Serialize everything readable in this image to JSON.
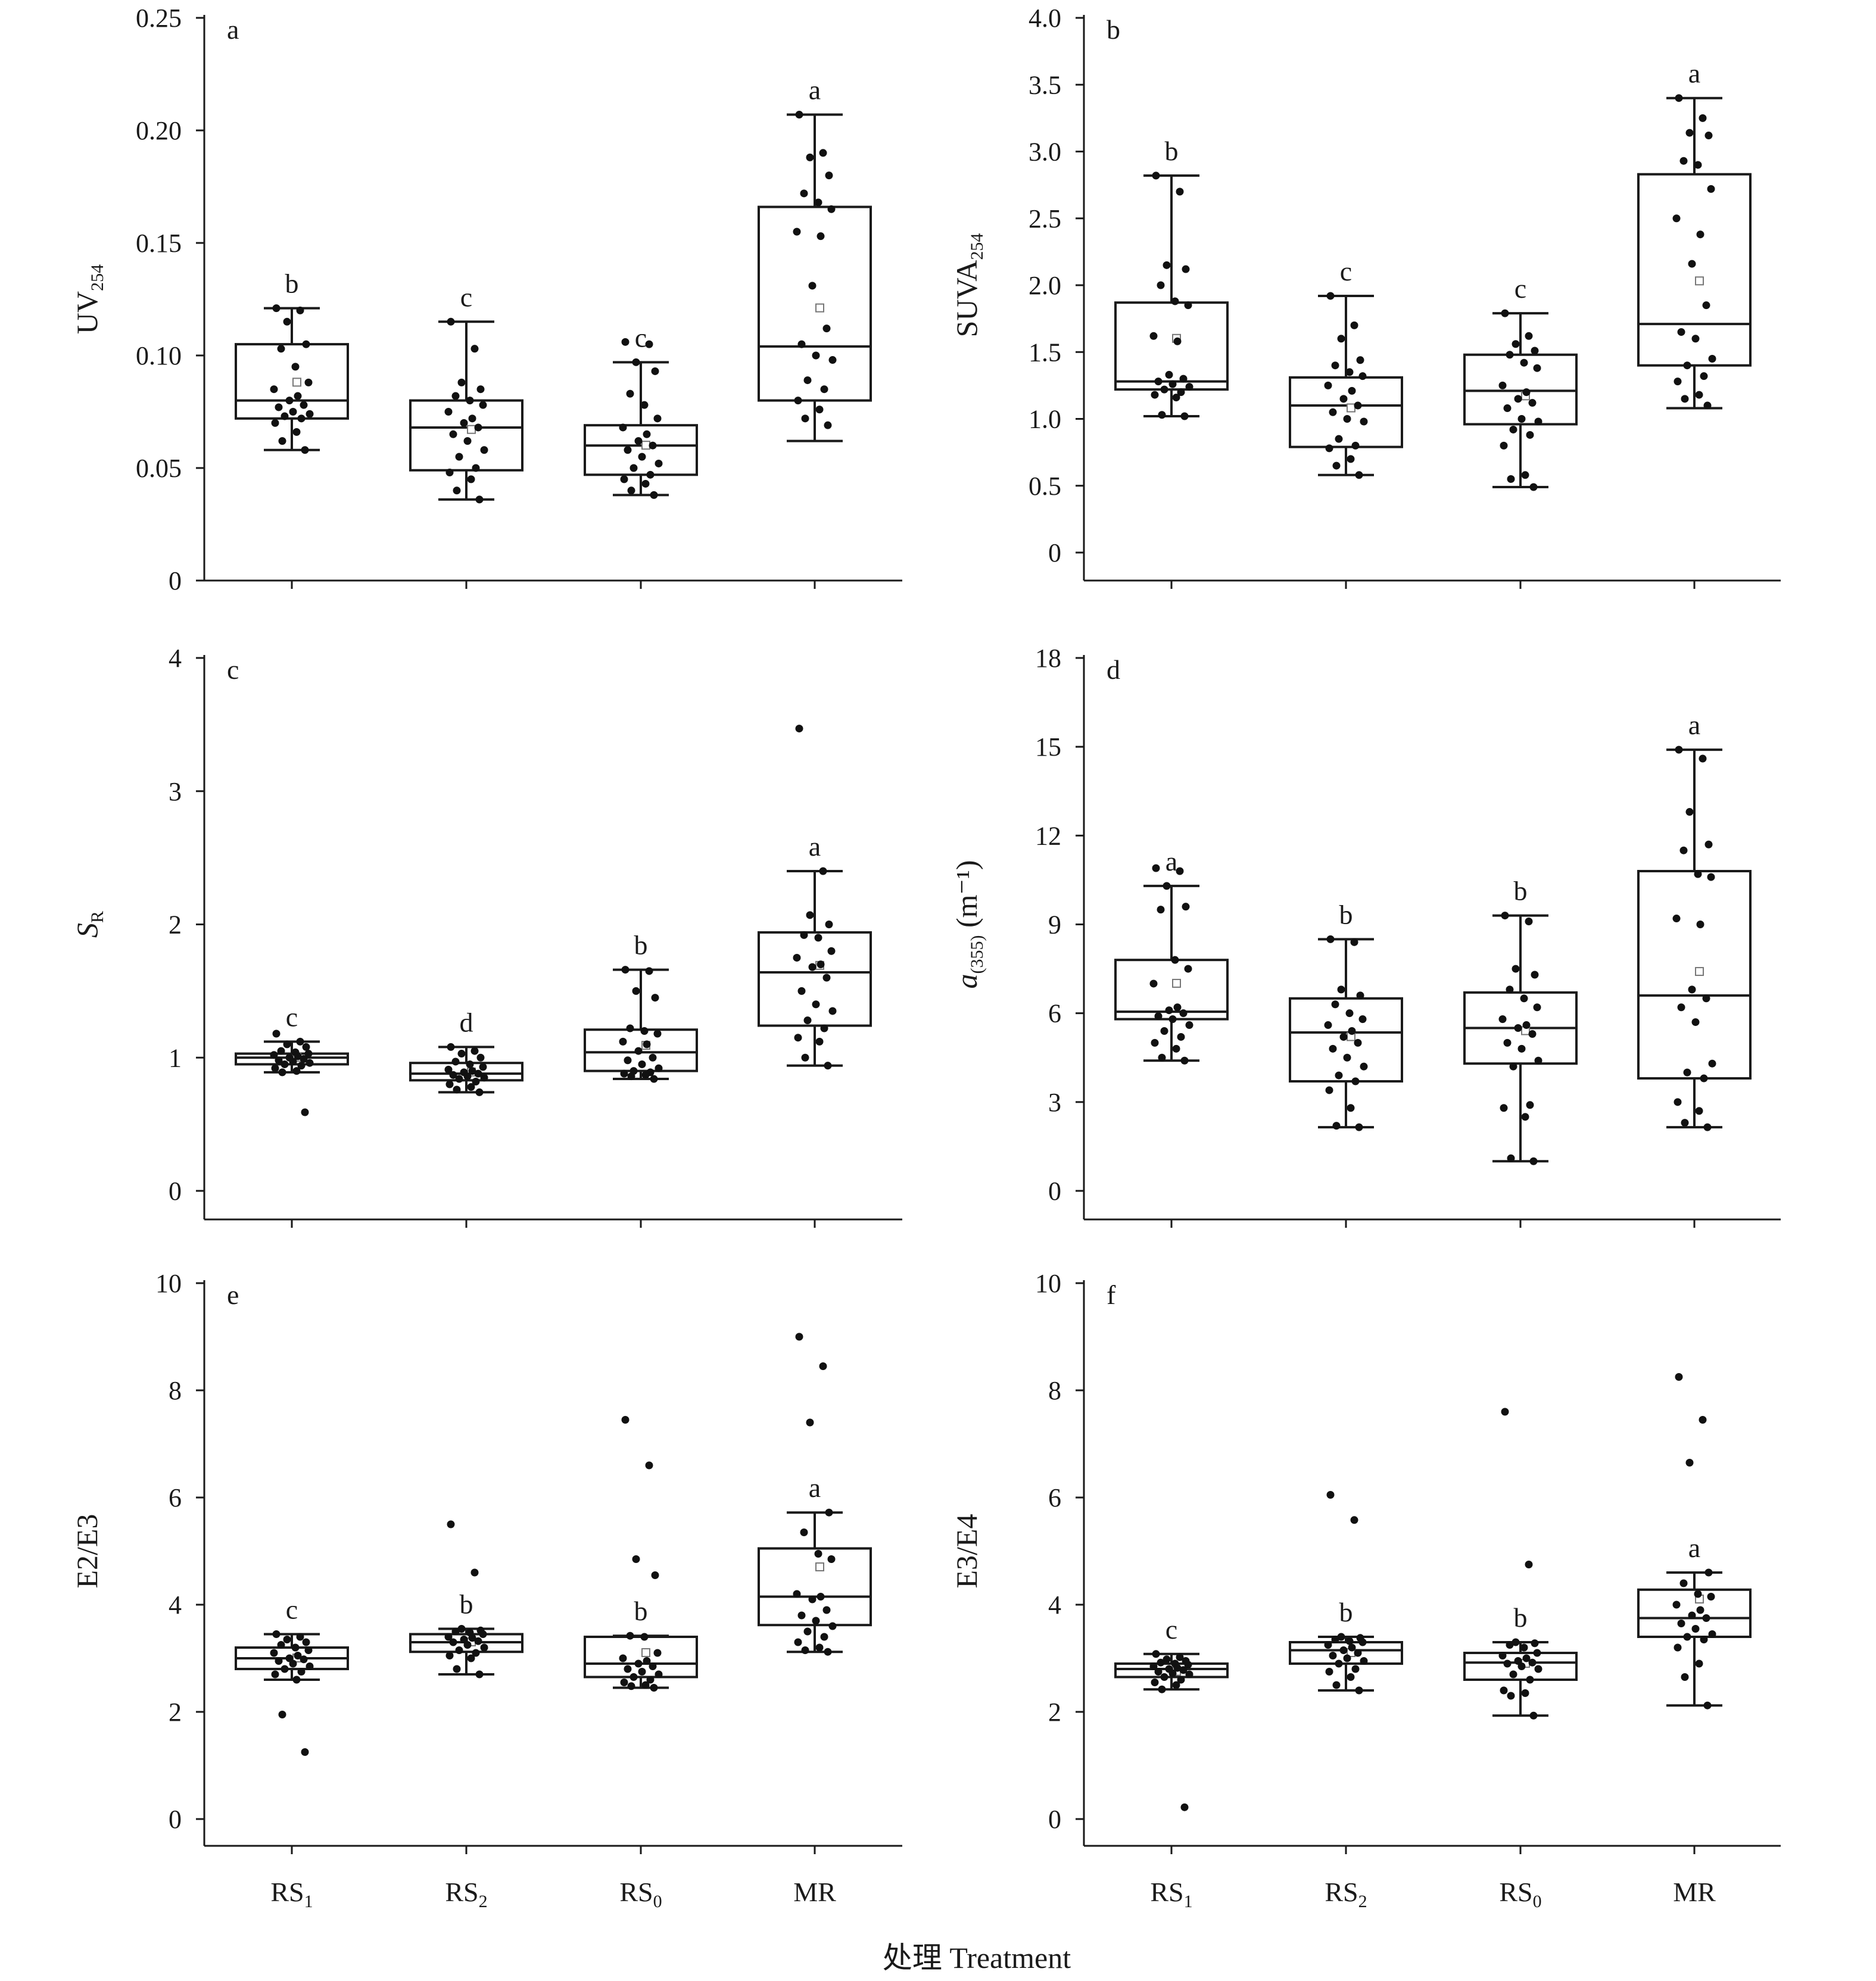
{
  "figure": {
    "xlabel": "处理 Treatment"
  },
  "chart_data": [
    {
      "panel": "a",
      "type": "box",
      "categories": [
        "RS1",
        "RS2",
        "RS0",
        "MR"
      ],
      "ylabel_main": "UV",
      "ylabel_sub": "254",
      "ylabel_suffix": "",
      "ylim": [
        0,
        0.25
      ],
      "yticks": [
        0,
        0.05,
        0.1,
        0.15,
        0.2,
        0.25
      ],
      "ytick_labels": [
        "0",
        "0.05",
        "0.10",
        "0.15",
        "0.20",
        "0.25"
      ],
      "boxes": [
        {
          "min": 0.058,
          "q1": 0.072,
          "median": 0.08,
          "q3": 0.105,
          "max": 0.121,
          "mean": 0.088,
          "letter": "b",
          "points": [
            0.121,
            0.12,
            0.115,
            0.105,
            0.103,
            0.095,
            0.088,
            0.085,
            0.082,
            0.08,
            0.078,
            0.077,
            0.075,
            0.074,
            0.073,
            0.072,
            0.07,
            0.066,
            0.062,
            0.058
          ]
        },
        {
          "min": 0.036,
          "q1": 0.049,
          "median": 0.068,
          "q3": 0.08,
          "max": 0.115,
          "mean": 0.067,
          "letter": "c",
          "points": [
            0.115,
            0.103,
            0.088,
            0.085,
            0.082,
            0.08,
            0.078,
            0.075,
            0.072,
            0.07,
            0.068,
            0.065,
            0.062,
            0.058,
            0.055,
            0.05,
            0.048,
            0.045,
            0.04,
            0.036
          ]
        },
        {
          "min": 0.038,
          "q1": 0.047,
          "median": 0.06,
          "q3": 0.069,
          "max": 0.097,
          "mean": 0.06,
          "letter": "c",
          "points": [
            0.106,
            0.105,
            0.097,
            0.093,
            0.083,
            0.078,
            0.072,
            0.068,
            0.065,
            0.062,
            0.06,
            0.058,
            0.055,
            0.052,
            0.05,
            0.047,
            0.045,
            0.043,
            0.04,
            0.038
          ]
        },
        {
          "min": 0.062,
          "q1": 0.08,
          "median": 0.104,
          "q3": 0.166,
          "max": 0.207,
          "mean": 0.121,
          "letter": "a",
          "points": [
            0.207,
            0.19,
            0.188,
            0.18,
            0.172,
            0.168,
            0.165,
            0.155,
            0.153,
            0.131,
            0.112,
            0.105,
            0.1,
            0.098,
            0.089,
            0.085,
            0.08,
            0.076,
            0.072,
            0.069
          ]
        }
      ]
    },
    {
      "panel": "b",
      "type": "box",
      "categories": [
        "RS1",
        "RS2",
        "RS0",
        "MR"
      ],
      "ylabel_main": "SUVA",
      "ylabel_sub": "254",
      "ylabel_suffix": "",
      "ylim": [
        0,
        4.0
      ],
      "yticks": [
        0,
        0.5,
        1,
        1.5,
        2,
        2.5,
        3,
        3.5,
        4
      ],
      "ytick_labels": [
        "0",
        "0.5",
        "1.0",
        "1.5",
        "2.0",
        "2.5",
        "3.0",
        "3.5",
        "4.0"
      ],
      "boxes": [
        {
          "min": 1.02,
          "q1": 1.22,
          "median": 1.28,
          "q3": 1.87,
          "max": 2.82,
          "mean": 1.6,
          "letter": "b",
          "points": [
            2.82,
            2.7,
            2.15,
            2.12,
            2.0,
            1.88,
            1.85,
            1.62,
            1.58,
            1.33,
            1.3,
            1.28,
            1.26,
            1.24,
            1.22,
            1.2,
            1.18,
            1.16,
            1.03,
            1.02
          ]
        },
        {
          "min": 0.58,
          "q1": 0.79,
          "median": 1.1,
          "q3": 1.31,
          "max": 1.92,
          "mean": 1.08,
          "letter": "c",
          "points": [
            1.92,
            1.7,
            1.6,
            1.44,
            1.4,
            1.35,
            1.32,
            1.25,
            1.21,
            1.15,
            1.1,
            1.05,
            1.0,
            0.98,
            0.85,
            0.8,
            0.78,
            0.7,
            0.65,
            0.58
          ]
        },
        {
          "min": 0.49,
          "q1": 0.96,
          "median": 1.21,
          "q3": 1.48,
          "max": 1.79,
          "mean": 1.17,
          "letter": "c",
          "points": [
            1.79,
            1.62,
            1.56,
            1.51,
            1.48,
            1.42,
            1.38,
            1.25,
            1.2,
            1.15,
            1.12,
            1.08,
            1.0,
            0.98,
            0.92,
            0.88,
            0.8,
            0.58,
            0.55,
            0.49
          ]
        },
        {
          "min": 1.08,
          "q1": 1.4,
          "median": 1.71,
          "q3": 2.83,
          "max": 3.4,
          "mean": 2.03,
          "letter": "a",
          "points": [
            3.4,
            3.25,
            3.14,
            3.12,
            2.93,
            2.9,
            2.72,
            2.5,
            2.38,
            2.16,
            1.85,
            1.65,
            1.6,
            1.45,
            1.4,
            1.32,
            1.28,
            1.18,
            1.15,
            1.1
          ]
        }
      ]
    },
    {
      "panel": "c",
      "type": "box",
      "categories": [
        "RS1",
        "RS2",
        "RS0",
        "MR"
      ],
      "ylabel_main": "S",
      "ylabel_sub": "R",
      "ylabel_suffix": "",
      "ylim": [
        0,
        4
      ],
      "yticks": [
        0,
        1,
        2,
        3,
        4
      ],
      "ytick_labels": [
        "0",
        "1",
        "2",
        "3",
        "4"
      ],
      "boxes": [
        {
          "min": 0.89,
          "q1": 0.95,
          "median": 1.0,
          "q3": 1.03,
          "max": 1.12,
          "mean": 1.0,
          "letter": "c",
          "points": [
            1.18,
            1.12,
            1.1,
            1.08,
            1.05,
            1.04,
            1.03,
            1.02,
            1.01,
            1.0,
            0.99,
            0.98,
            0.97,
            0.96,
            0.95,
            0.94,
            0.92,
            0.9,
            0.89,
            0.59
          ]
        },
        {
          "min": 0.74,
          "q1": 0.83,
          "median": 0.88,
          "q3": 0.96,
          "max": 1.08,
          "mean": 0.89,
          "letter": "d",
          "points": [
            1.08,
            1.05,
            1.03,
            1.0,
            0.97,
            0.95,
            0.93,
            0.91,
            0.9,
            0.89,
            0.88,
            0.87,
            0.86,
            0.85,
            0.84,
            0.82,
            0.8,
            0.78,
            0.76,
            0.74
          ]
        },
        {
          "min": 0.84,
          "q1": 0.9,
          "median": 1.04,
          "q3": 1.21,
          "max": 1.66,
          "mean": 1.09,
          "letter": "b",
          "points": [
            1.66,
            1.65,
            1.5,
            1.45,
            1.22,
            1.2,
            1.18,
            1.12,
            1.1,
            1.05,
            1.0,
            0.98,
            0.95,
            0.92,
            0.9,
            0.89,
            0.88,
            0.87,
            0.86,
            0.84
          ]
        },
        {
          "min": 0.94,
          "q1": 1.24,
          "median": 1.64,
          "q3": 1.94,
          "max": 2.4,
          "mean": 1.69,
          "letter": "a",
          "points": [
            3.47,
            2.4,
            2.07,
            2.0,
            1.92,
            1.9,
            1.8,
            1.75,
            1.7,
            1.68,
            1.6,
            1.5,
            1.4,
            1.35,
            1.28,
            1.22,
            1.15,
            1.12,
            1.0,
            0.94
          ]
        }
      ]
    },
    {
      "panel": "d",
      "type": "box",
      "categories": [
        "RS1",
        "RS2",
        "RS0",
        "MR"
      ],
      "ylabel_main": "a",
      "ylabel_sub": "(355)",
      "ylabel_suffix": " (m⁻¹)",
      "ylim": [
        0,
        18
      ],
      "yticks": [
        0,
        3,
        6,
        9,
        12,
        15,
        18
      ],
      "ytick_labels": [
        "0",
        "3",
        "6",
        "9",
        "12",
        "15",
        "18"
      ],
      "boxes": [
        {
          "min": 4.4,
          "q1": 5.8,
          "median": 6.05,
          "q3": 7.8,
          "max": 10.3,
          "mean": 7.0,
          "letter": "a",
          "points": [
            10.9,
            10.8,
            10.3,
            9.6,
            9.5,
            7.8,
            7.5,
            7.0,
            6.2,
            6.1,
            6.0,
            5.9,
            5.8,
            5.6,
            5.4,
            5.2,
            5.0,
            4.8,
            4.5,
            4.4
          ]
        },
        {
          "min": 2.15,
          "q1": 3.7,
          "median": 5.35,
          "q3": 6.5,
          "max": 8.5,
          "mean": 5.2,
          "letter": "b",
          "points": [
            8.5,
            8.4,
            6.8,
            6.6,
            6.3,
            6.0,
            5.8,
            5.6,
            5.4,
            5.2,
            5.0,
            4.8,
            4.5,
            4.2,
            3.9,
            3.7,
            3.4,
            2.8,
            2.2,
            2.15
          ]
        },
        {
          "min": 1.0,
          "q1": 4.3,
          "median": 5.5,
          "q3": 6.7,
          "max": 9.3,
          "mean": 5.4,
          "letter": "b",
          "points": [
            9.3,
            9.1,
            7.5,
            7.3,
            6.8,
            6.5,
            6.2,
            5.8,
            5.6,
            5.5,
            5.3,
            5.0,
            4.8,
            4.4,
            4.2,
            2.9,
            2.8,
            2.5,
            1.1,
            1.0
          ]
        },
        {
          "min": 2.15,
          "q1": 3.8,
          "median": 6.6,
          "q3": 10.8,
          "max": 14.9,
          "mean": 7.4,
          "letter": "a",
          "points": [
            14.9,
            14.6,
            12.8,
            11.7,
            11.5,
            10.7,
            10.6,
            9.2,
            9.0,
            6.8,
            6.5,
            6.2,
            5.7,
            4.3,
            4.0,
            3.8,
            3.0,
            2.7,
            2.3,
            2.15
          ]
        }
      ]
    },
    {
      "panel": "e",
      "type": "box",
      "categories": [
        "RS1",
        "RS2",
        "RS0",
        "MR"
      ],
      "ylabel_main": "E2/E3",
      "ylabel_sub": "",
      "ylabel_suffix": "",
      "ylim": [
        0,
        10
      ],
      "yticks": [
        0,
        2,
        4,
        6,
        8,
        10
      ],
      "ytick_labels": [
        "0",
        "2",
        "4",
        "6",
        "8",
        "10"
      ],
      "boxes": [
        {
          "min": 2.6,
          "q1": 2.8,
          "median": 3.0,
          "q3": 3.2,
          "max": 3.45,
          "mean": 3.0,
          "letter": "c",
          "points": [
            3.45,
            3.4,
            3.35,
            3.3,
            3.25,
            3.2,
            3.15,
            3.1,
            3.05,
            3.0,
            2.98,
            2.95,
            2.9,
            2.85,
            2.8,
            2.75,
            2.7,
            2.6,
            1.95,
            1.25
          ]
        },
        {
          "min": 2.7,
          "q1": 3.12,
          "median": 3.3,
          "q3": 3.45,
          "max": 3.55,
          "mean": 3.3,
          "letter": "b",
          "points": [
            5.5,
            4.6,
            3.55,
            3.52,
            3.5,
            3.48,
            3.45,
            3.4,
            3.38,
            3.35,
            3.32,
            3.3,
            3.25,
            3.2,
            3.15,
            3.1,
            3.05,
            3.0,
            2.8,
            2.7
          ]
        },
        {
          "min": 2.45,
          "q1": 2.65,
          "median": 2.9,
          "q3": 3.4,
          "max": 3.42,
          "mean": 3.1,
          "letter": "b",
          "points": [
            7.45,
            6.6,
            4.85,
            4.55,
            3.42,
            3.4,
            3.1,
            3.0,
            2.95,
            2.9,
            2.85,
            2.8,
            2.75,
            2.7,
            2.65,
            2.6,
            2.55,
            2.5,
            2.48,
            2.45
          ]
        },
        {
          "min": 3.12,
          "q1": 3.62,
          "median": 4.15,
          "q3": 5.05,
          "max": 5.72,
          "mean": 4.7,
          "letter": "a",
          "points": [
            9.0,
            8.45,
            7.4,
            5.72,
            5.35,
            4.95,
            4.85,
            4.2,
            4.15,
            4.1,
            3.9,
            3.8,
            3.7,
            3.6,
            3.5,
            3.4,
            3.3,
            3.2,
            3.15,
            3.12
          ]
        }
      ]
    },
    {
      "panel": "f",
      "type": "box",
      "categories": [
        "RS1",
        "RS2",
        "RS0",
        "MR"
      ],
      "ylabel_main": "E3/E4",
      "ylabel_sub": "",
      "ylabel_suffix": "",
      "ylim": [
        0,
        10
      ],
      "yticks": [
        0,
        2,
        4,
        6,
        8,
        10
      ],
      "ytick_labels": [
        "0",
        "2",
        "4",
        "6",
        "8",
        "10"
      ],
      "boxes": [
        {
          "min": 2.42,
          "q1": 2.65,
          "median": 2.8,
          "q3": 2.9,
          "max": 3.08,
          "mean": 2.75,
          "letter": "c",
          "points": [
            3.08,
            3.02,
            2.98,
            2.95,
            2.92,
            2.9,
            2.88,
            2.85,
            2.82,
            2.8,
            2.78,
            2.75,
            2.72,
            2.7,
            2.65,
            2.6,
            2.55,
            2.5,
            2.42,
            0.22
          ]
        },
        {
          "min": 2.4,
          "q1": 2.9,
          "median": 3.15,
          "q3": 3.3,
          "max": 3.4,
          "mean": 3.1,
          "letter": "b",
          "points": [
            6.05,
            5.58,
            3.4,
            3.38,
            3.35,
            3.32,
            3.3,
            3.25,
            3.2,
            3.15,
            3.1,
            3.05,
            3.0,
            2.95,
            2.9,
            2.8,
            2.75,
            2.65,
            2.5,
            2.4
          ]
        },
        {
          "min": 1.93,
          "q1": 2.6,
          "median": 2.92,
          "q3": 3.1,
          "max": 3.3,
          "mean": 2.9,
          "letter": "b",
          "points": [
            7.6,
            4.75,
            3.3,
            3.28,
            3.25,
            3.2,
            3.1,
            3.05,
            3.0,
            2.95,
            2.92,
            2.9,
            2.85,
            2.8,
            2.7,
            2.6,
            2.4,
            2.35,
            2.3,
            1.93
          ]
        },
        {
          "min": 2.12,
          "q1": 3.4,
          "median": 3.75,
          "q3": 4.28,
          "max": 4.6,
          "mean": 4.1,
          "letter": "a",
          "points": [
            8.25,
            7.45,
            6.65,
            4.6,
            4.4,
            4.2,
            4.15,
            4.0,
            3.9,
            3.8,
            3.75,
            3.65,
            3.55,
            3.45,
            3.4,
            3.35,
            3.2,
            2.9,
            2.65,
            2.12
          ]
        }
      ]
    }
  ]
}
